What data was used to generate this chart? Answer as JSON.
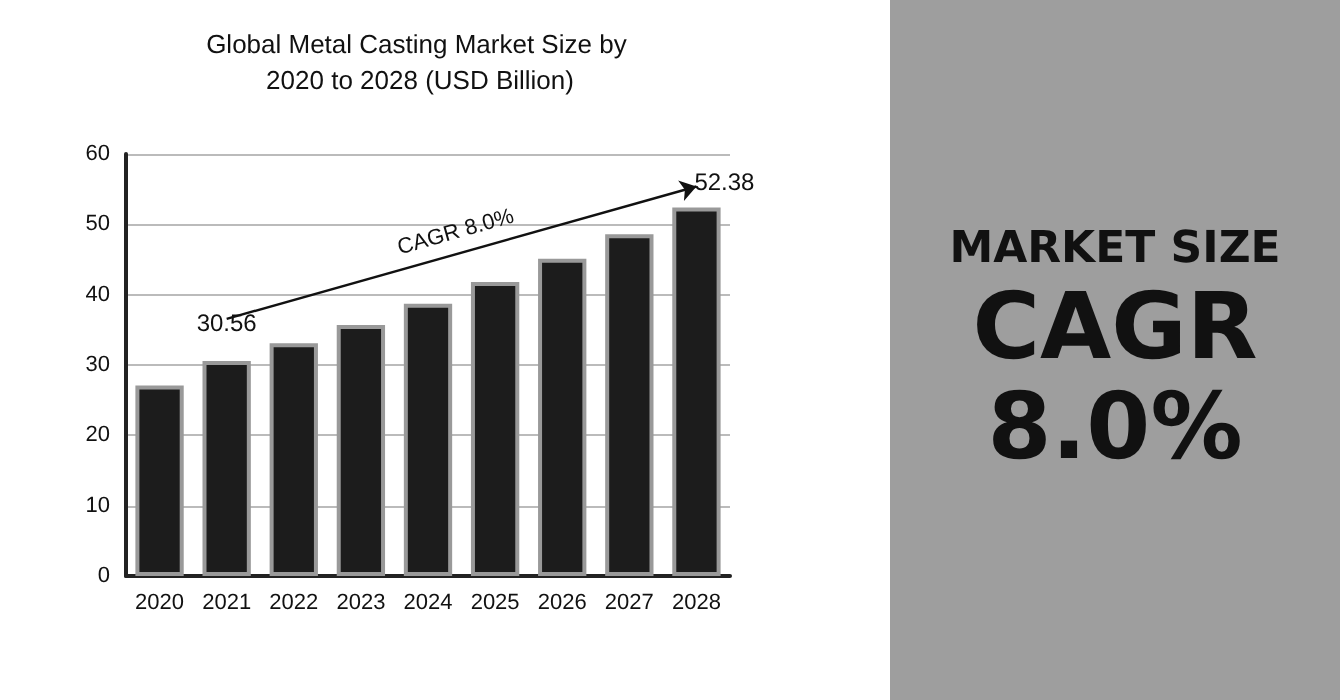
{
  "chart_data": [
    {
      "type": "bar",
      "title": "Global Metal Casting Market Size by 2020 to 2028 (USD Billion)",
      "categories": [
        "2020",
        "2021",
        "2022",
        "2023",
        "2024",
        "2025",
        "2026",
        "2027",
        "2028"
      ],
      "values": [
        27.1,
        30.56,
        33.1,
        35.7,
        38.7,
        41.8,
        45.1,
        48.6,
        52.38
      ],
      "value_labels": [
        null,
        "30.56",
        null,
        null,
        null,
        null,
        null,
        null,
        "52.38"
      ],
      "color": "#1c1c1c",
      "ylim": [
        0,
        60
      ],
      "yticks": [
        0,
        10,
        20,
        30,
        40,
        50,
        60
      ],
      "grid": "y",
      "annotations": [
        "CAGR 8.0%"
      ]
    },
    {
      "type": "other",
      "annotations": [
        "MARKET SIZE",
        "CAGR",
        "8.0%"
      ]
    }
  ]
}
